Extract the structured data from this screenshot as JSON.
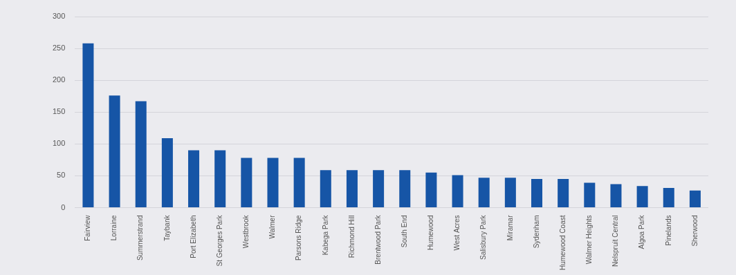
{
  "chart_data": {
    "type": "bar",
    "categories": [
      "Fairview",
      "Lorraine",
      "Summerstrand",
      "Taybank",
      "Port Elizabeth",
      "St Georges Park",
      "Westbrook",
      "Walmer",
      "Parsons Ridge",
      "Kabega Park",
      "Richmond Hill",
      "Brentwood Park",
      "South End",
      "Humewood",
      "West Acres",
      "Salisbury Park",
      "Miramar",
      "Sydenham",
      "Humewood Coast",
      "Walmer Heights",
      "Nelspruit Central",
      "Algoa Park",
      "Pinelands",
      "Sherwood"
    ],
    "values": [
      258,
      176,
      167,
      109,
      90,
      90,
      78,
      78,
      78,
      59,
      59,
      59,
      59,
      55,
      51,
      47,
      47,
      45,
      45,
      39,
      37,
      34,
      31,
      27
    ],
    "color": "#1655a6",
    "ylim": [
      0,
      300
    ],
    "yticks": [
      0,
      50,
      100,
      150,
      200,
      250,
      300
    ],
    "grid": true
  }
}
